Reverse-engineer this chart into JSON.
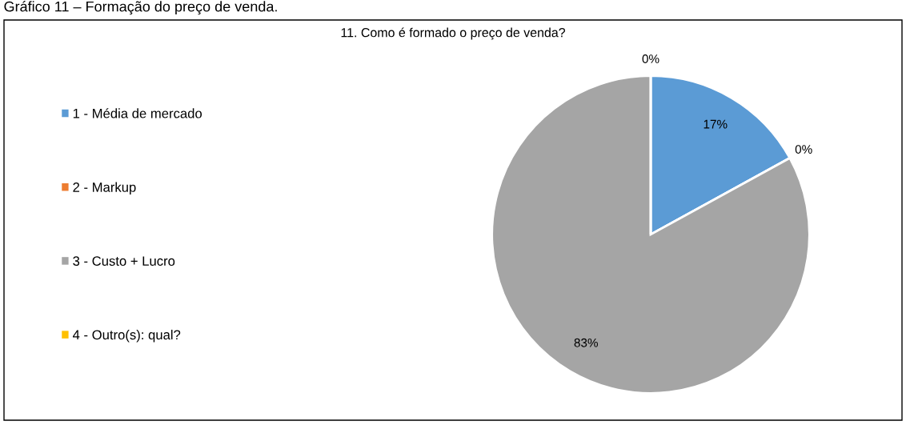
{
  "chart_data": {
    "type": "pie",
    "title": "11. Como é formado o preço de venda?",
    "annotations": [
      "Gráfico 11 – Formação do preço de venda."
    ],
    "categories": [
      "1 - Média de mercado",
      "2 - Markup",
      "3 - Custo + Lucro",
      "4 - Outro(s): qual?"
    ],
    "values": [
      17,
      0,
      83,
      0
    ],
    "colors": [
      "#5b9bd5",
      "#ed7d31",
      "#a5a5a5",
      "#ffc000"
    ],
    "value_labels": [
      "17%",
      "0%",
      "83%",
      "0%"
    ],
    "legend": "left"
  }
}
